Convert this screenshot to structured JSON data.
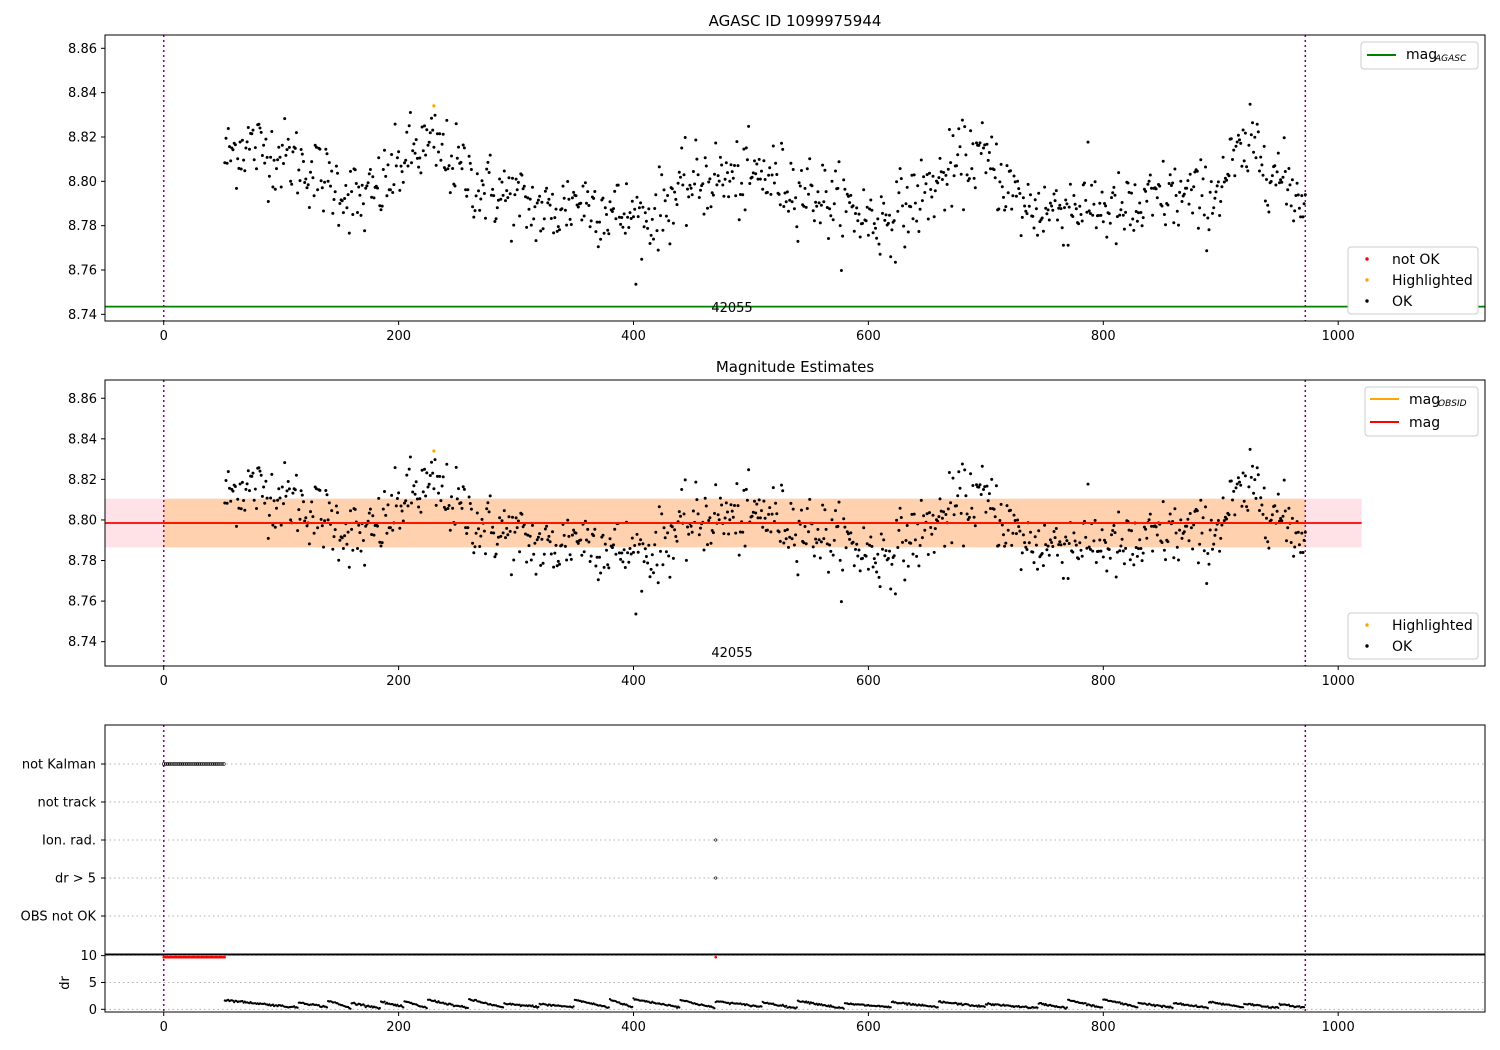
{
  "chart_data": [
    {
      "type": "scatter",
      "title": "AGASC ID 1099975944",
      "xlim": [
        -50,
        1125
      ],
      "ylim": [
        8.737,
        8.866
      ],
      "xticks": [
        0,
        200,
        400,
        600,
        800,
        1000
      ],
      "yticks": [
        8.74,
        8.76,
        8.78,
        8.8,
        8.82,
        8.84,
        8.86
      ],
      "annotation": "42055",
      "vlines": [
        0,
        972
      ],
      "mag_agasc": 8.7435,
      "legend_lines": [
        {
          "label": "mag",
          "sub": "AGASC",
          "color": "#008000"
        }
      ],
      "legend_points": [
        {
          "label": "not OK",
          "color": "#ff0000"
        },
        {
          "label": "Highlighted",
          "color": "#ffa500"
        },
        {
          "label": "OK",
          "color": "#000000"
        }
      ],
      "highlighted": [
        {
          "x": 230,
          "y": 8.834
        }
      ],
      "series_anchors": {
        "x": [
          52,
          70,
          90,
          110,
          130,
          150,
          170,
          190,
          210,
          230,
          250,
          270,
          290,
          310,
          330,
          350,
          370,
          390,
          410,
          430,
          450,
          470,
          490,
          510,
          530,
          550,
          570,
          590,
          610,
          630,
          650,
          670,
          690,
          710,
          730,
          750,
          770,
          790,
          810,
          830,
          850,
          870,
          890,
          910,
          930,
          950,
          972
        ],
        "y": [
          8.811,
          8.817,
          8.813,
          8.81,
          8.803,
          8.797,
          8.79,
          8.8,
          8.813,
          8.816,
          8.807,
          8.797,
          8.794,
          8.789,
          8.785,
          8.792,
          8.789,
          8.785,
          8.782,
          8.791,
          8.799,
          8.802,
          8.8,
          8.803,
          8.799,
          8.796,
          8.79,
          8.786,
          8.782,
          8.788,
          8.795,
          8.804,
          8.813,
          8.804,
          8.789,
          8.787,
          8.789,
          8.79,
          8.786,
          8.786,
          8.793,
          8.793,
          8.791,
          8.808,
          8.816,
          8.801,
          8.791
        ]
      }
    },
    {
      "type": "scatter",
      "title": "Magnitude Estimates",
      "xlim": [
        -50,
        1125
      ],
      "ylim": [
        8.728,
        8.869
      ],
      "xticks": [
        0,
        200,
        400,
        600,
        800,
        1000
      ],
      "yticks": [
        8.74,
        8.76,
        8.78,
        8.8,
        8.82,
        8.84,
        8.86
      ],
      "annotation": "42055",
      "vlines": [
        0,
        972
      ],
      "mag": 8.7985,
      "mag_obsid": 8.7985,
      "band": [
        8.7865,
        8.8105
      ],
      "band_x": [
        -50,
        1020
      ],
      "band_core_x": [
        0,
        972
      ],
      "legend_lines": [
        {
          "label": "mag",
          "sub": "OBSID",
          "color": "#ffa500"
        },
        {
          "label": "mag",
          "sub": "",
          "color": "#ff0000"
        }
      ],
      "legend_points": [
        {
          "label": "Highlighted",
          "color": "#ffa500"
        },
        {
          "label": "OK",
          "color": "#000000"
        }
      ],
      "highlighted": [
        {
          "x": 230,
          "y": 8.834
        }
      ]
    },
    {
      "type": "scatter",
      "categories": [
        "not Kalman",
        "not track",
        "Ion. rad.",
        "dr > 5",
        "OBS not OK"
      ],
      "xlim": [
        -50,
        1125
      ],
      "xticks": [
        0,
        200,
        400,
        600,
        800,
        1000
      ],
      "vlines": [
        0,
        972
      ],
      "flags": [
        {
          "category": "not Kalman",
          "x_range": [
            0,
            52
          ]
        },
        {
          "category": "Ion. rad.",
          "x": [
            470
          ]
        },
        {
          "category": "dr > 5",
          "x": [
            470
          ]
        }
      ]
    },
    {
      "type": "scatter",
      "ylabel": "dr",
      "xlim": [
        -50,
        1125
      ],
      "ylim": [
        -0.5,
        10.3
      ],
      "xticks": [
        0,
        200,
        400,
        600,
        800,
        1000
      ],
      "yticks": [
        0,
        5,
        10
      ],
      "vlines": [
        0,
        972
      ],
      "saturated": {
        "x_range": [
          0,
          52
        ],
        "y": 9.7
      },
      "saturated_extra": [
        {
          "x": 470,
          "y": 9.7
        }
      ],
      "segments_x": [
        52,
        115,
        140,
        160,
        185,
        205,
        225,
        260,
        290,
        320,
        350,
        380,
        400,
        440,
        470,
        510,
        540,
        580,
        620,
        660,
        700,
        745,
        770,
        800,
        830,
        860,
        890,
        920,
        950,
        972
      ]
    }
  ]
}
